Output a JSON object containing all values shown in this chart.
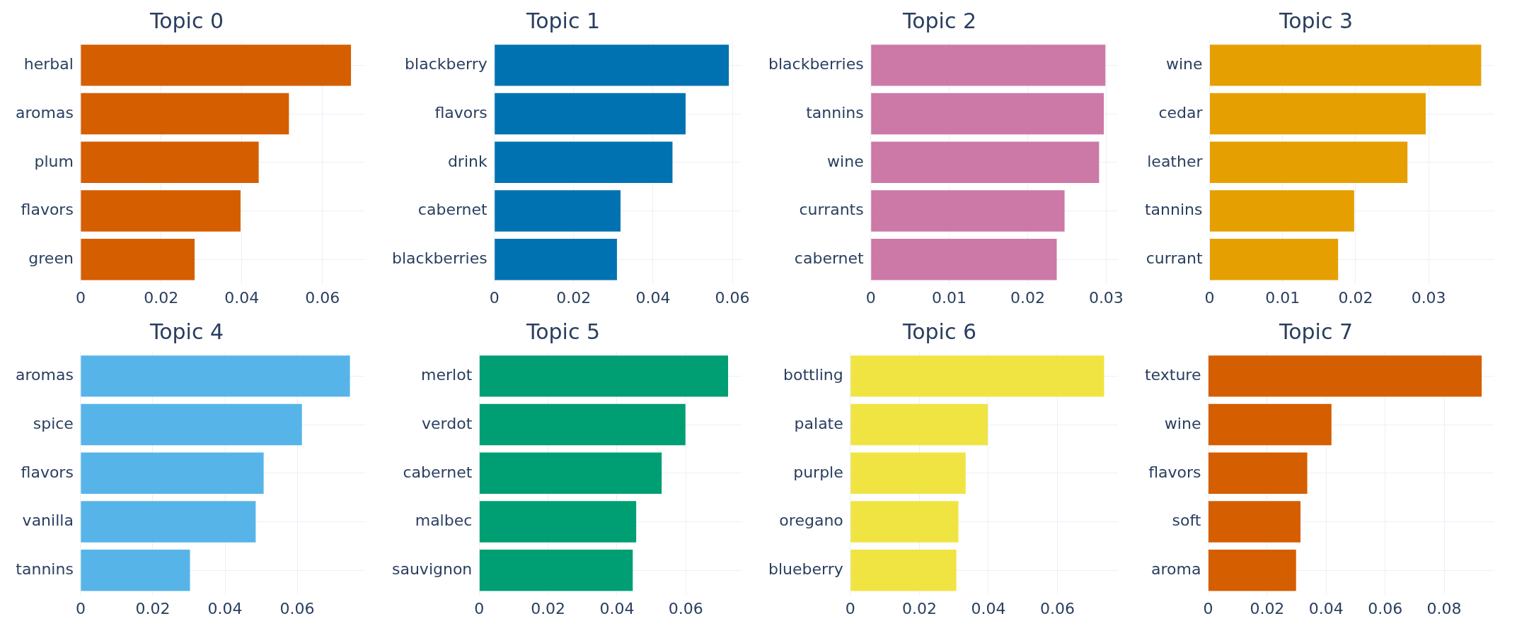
{
  "chart_data": [
    {
      "type": "bar",
      "orientation": "horizontal",
      "title": "Topic 0",
      "categories": [
        "herbal",
        "aromas",
        "plum",
        "flavors",
        "green"
      ],
      "values": [
        0.0671,
        0.0517,
        0.0442,
        0.0397,
        0.0283
      ],
      "color": "#d55e00",
      "xlim": [
        0,
        0.0706
      ],
      "xticks": [
        0,
        0.02,
        0.04,
        0.06
      ],
      "grid": true
    },
    {
      "type": "bar",
      "orientation": "horizontal",
      "title": "Topic 1",
      "categories": [
        "blackberry",
        "flavors",
        "drink",
        "cabernet",
        "blackberries"
      ],
      "values": [
        0.0591,
        0.0482,
        0.0449,
        0.0318,
        0.0309
      ],
      "color": "#0072b2",
      "xlim": [
        0,
        0.0623
      ],
      "xticks": [
        0,
        0.02,
        0.04,
        0.06
      ],
      "grid": true
    },
    {
      "type": "bar",
      "orientation": "horizontal",
      "title": "Topic 2",
      "categories": [
        "blackberries",
        "tannins",
        "wine",
        "currants",
        "cabernet"
      ],
      "values": [
        0.0299,
        0.0297,
        0.0291,
        0.0247,
        0.0237
      ],
      "color": "#cc79a7",
      "xlim": [
        0,
        0.0315
      ],
      "xticks": [
        0,
        0.01,
        0.02,
        0.03
      ],
      "grid": true
    },
    {
      "type": "bar",
      "orientation": "horizontal",
      "title": "Topic 3",
      "categories": [
        "wine",
        "cedar",
        "leather",
        "tannins",
        "currant"
      ],
      "values": [
        0.0372,
        0.0296,
        0.0271,
        0.0198,
        0.0176
      ],
      "color": "#e69f00",
      "xlim": [
        0,
        0.039
      ],
      "xticks": [
        0,
        0.01,
        0.02,
        0.03
      ],
      "grid": true
    },
    {
      "type": "bar",
      "orientation": "horizontal",
      "title": "Topic 4",
      "categories": [
        "aromas",
        "spice",
        "flavors",
        "vanilla",
        "tannins"
      ],
      "values": [
        0.0746,
        0.0613,
        0.0507,
        0.0485,
        0.0303
      ],
      "color": "#56b4e9",
      "xlim": [
        0,
        0.0788
      ],
      "xticks": [
        0,
        0.02,
        0.04,
        0.06
      ],
      "grid": true
    },
    {
      "type": "bar",
      "orientation": "horizontal",
      "title": "Topic 5",
      "categories": [
        "merlot",
        "verdot",
        "cabernet",
        "malbec",
        "sauvignon"
      ],
      "values": [
        0.0723,
        0.0599,
        0.053,
        0.0456,
        0.0446
      ],
      "color": "#009e73",
      "xlim": [
        0,
        0.0762
      ],
      "xticks": [
        0,
        0.02,
        0.04,
        0.06
      ],
      "grid": true
    },
    {
      "type": "bar",
      "orientation": "horizontal",
      "title": "Topic 6",
      "categories": [
        "bottling",
        "palate",
        "purple",
        "oregano",
        "blueberry"
      ],
      "values": [
        0.0735,
        0.0398,
        0.0334,
        0.0313,
        0.0307
      ],
      "color": "#f0e442",
      "xlim": [
        0,
        0.0775
      ],
      "xticks": [
        0,
        0.02,
        0.04,
        0.06
      ],
      "grid": true
    },
    {
      "type": "bar",
      "orientation": "horizontal",
      "title": "Topic 7",
      "categories": [
        "texture",
        "wine",
        "flavors",
        "soft",
        "aroma"
      ],
      "values": [
        0.0927,
        0.0418,
        0.0336,
        0.0313,
        0.0298
      ],
      "color": "#d55e00",
      "xlim": [
        0,
        0.097
      ],
      "xticks": [
        0,
        0.02,
        0.04,
        0.06,
        0.08
      ],
      "grid": true
    }
  ]
}
